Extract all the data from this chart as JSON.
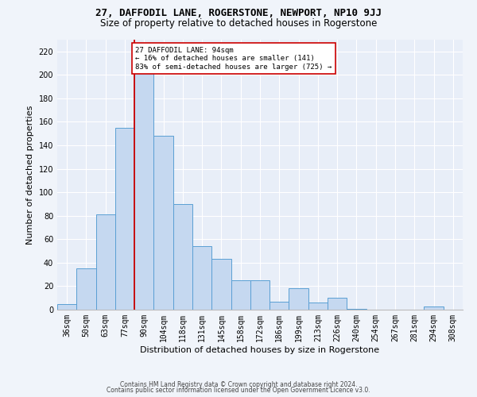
{
  "title": "27, DAFFODIL LANE, ROGERSTONE, NEWPORT, NP10 9JJ",
  "subtitle": "Size of property relative to detached houses in Rogerstone",
  "xlabel": "Distribution of detached houses by size in Rogerstone",
  "ylabel": "Number of detached properties",
  "categories": [
    "36sqm",
    "50sqm",
    "63sqm",
    "77sqm",
    "90sqm",
    "104sqm",
    "118sqm",
    "131sqm",
    "145sqm",
    "158sqm",
    "172sqm",
    "186sqm",
    "199sqm",
    "213sqm",
    "226sqm",
    "240sqm",
    "254sqm",
    "267sqm",
    "281sqm",
    "294sqm",
    "308sqm"
  ],
  "values": [
    5,
    35,
    81,
    155,
    202,
    148,
    90,
    54,
    43,
    25,
    25,
    7,
    18,
    6,
    10,
    1,
    0,
    0,
    0,
    3,
    0
  ],
  "bar_color": "#c5d8f0",
  "bar_edge_color": "#5a9fd4",
  "highlight_index": 4,
  "highlight_line_color": "#cc0000",
  "annotation_line1": "27 DAFFODIL LANE: 94sqm",
  "annotation_line2": "← 16% of detached houses are smaller (141)",
  "annotation_line3": "83% of semi-detached houses are larger (725) →",
  "annotation_box_color": "#ffffff",
  "annotation_box_edge": "#cc0000",
  "footer1": "Contains HM Land Registry data © Crown copyright and database right 2024.",
  "footer2": "Contains public sector information licensed under the Open Government Licence v3.0.",
  "ylim": [
    0,
    230
  ],
  "yticks": [
    0,
    20,
    40,
    60,
    80,
    100,
    120,
    140,
    160,
    180,
    200,
    220
  ],
  "bg_color": "#e8eef8",
  "grid_color": "#ffffff",
  "fig_bg_color": "#f0f4fa",
  "title_fontsize": 9,
  "subtitle_fontsize": 8.5,
  "tick_fontsize": 7,
  "label_fontsize": 8,
  "footer_fontsize": 5.5
}
